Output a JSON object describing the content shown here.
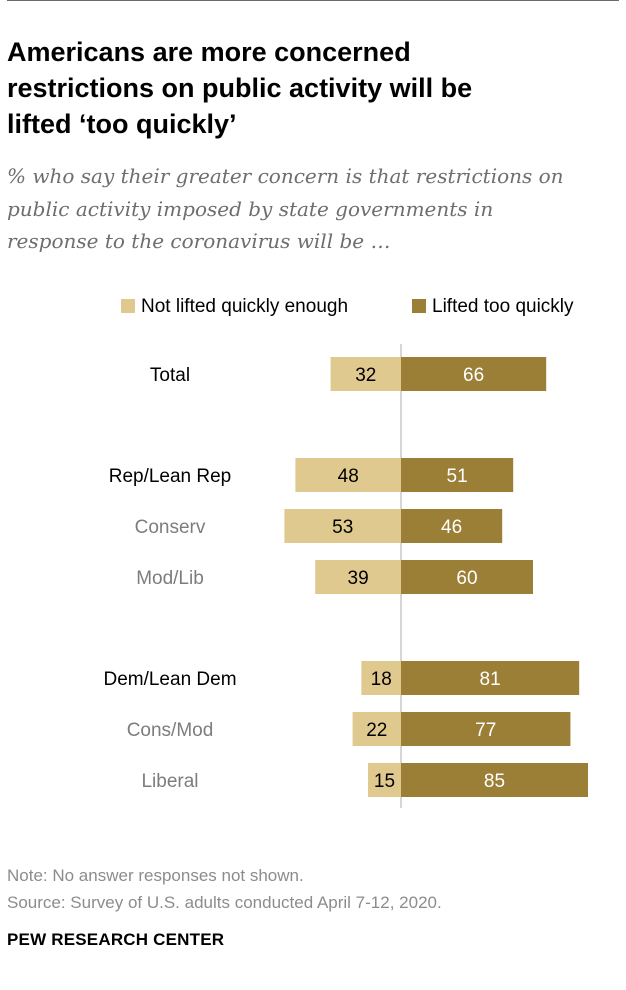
{
  "header": {
    "title_lines": [
      "Americans are more concerned",
      "restrictions on public activity will be",
      "lifted ‘too quickly’"
    ],
    "subtitle_lines": [
      "% who say their greater concern is that restrictions on",
      "public activity imposed by state governments in",
      "response to the coronavirus will be …"
    ]
  },
  "chart_data": {
    "type": "bar",
    "orientation": "horizontal-diverging",
    "title": "Americans are more concerned restrictions on public activity will be lifted ‘too quickly’",
    "legend": [
      "Not lifted quickly enough",
      "Lifted too quickly"
    ],
    "legend_position": "top-right",
    "colors": {
      "not_enough": "#e0c98f",
      "too_quickly": "#9c7f36",
      "axis_line": "#c8c8c8",
      "label_primary": "#000000",
      "label_secondary": "#7d7d7d"
    },
    "categories": [
      "Total",
      "Rep/Lean Rep",
      "Conserv",
      "Mod/Lib",
      "Dem/Lean Dem",
      "Cons/Mod",
      "Liberal"
    ],
    "category_emphasis": [
      "primary",
      "primary",
      "secondary",
      "secondary",
      "primary",
      "secondary",
      "secondary"
    ],
    "series": [
      {
        "name": "Not lifted quickly enough",
        "values": [
          32,
          48,
          53,
          39,
          18,
          22,
          15
        ]
      },
      {
        "name": "Lifted too quickly",
        "values": [
          66,
          51,
          46,
          60,
          81,
          77,
          85
        ]
      }
    ],
    "xlabel": "",
    "ylabel": ""
  },
  "footer": {
    "note": "Note: No answer responses not shown.",
    "source": "Source: Survey of U.S. adults conducted April 7-12, 2020.",
    "brand": "PEW RESEARCH CENTER"
  }
}
